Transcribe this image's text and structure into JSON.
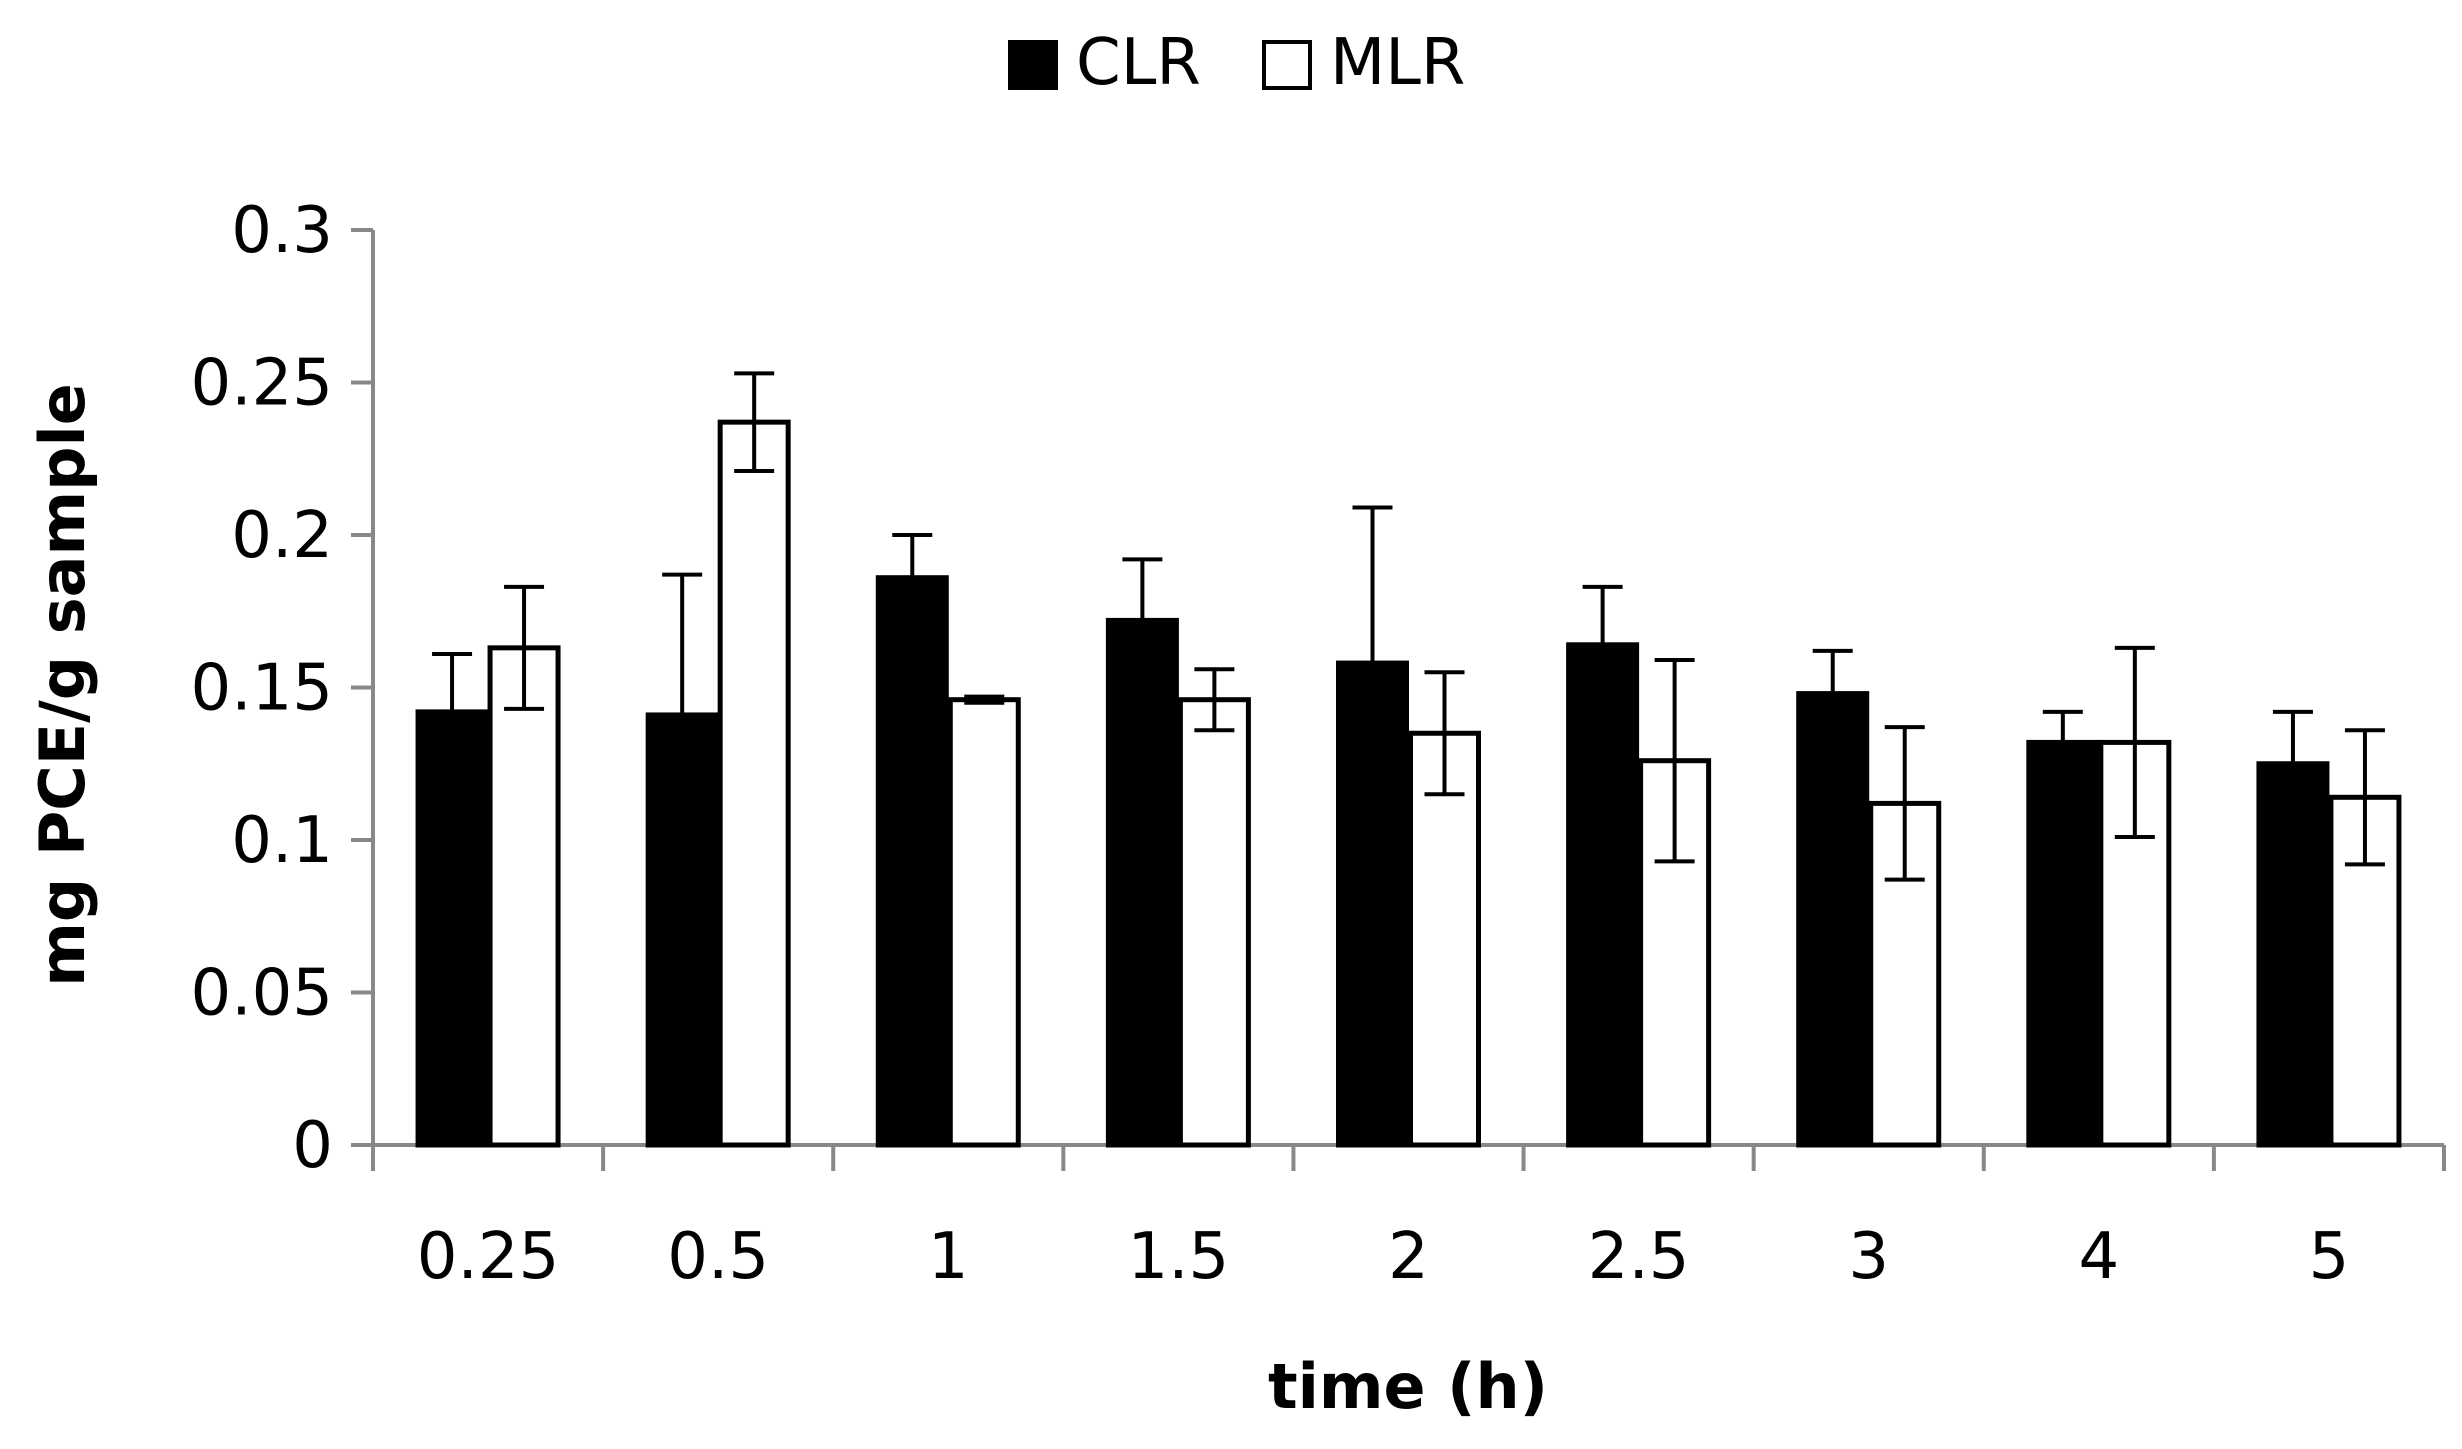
{
  "chart_data": {
    "type": "bar",
    "title": "",
    "xlabel": "time (h)",
    "ylabel": "mg PCE/g sample",
    "ylim": [
      0,
      0.3
    ],
    "yticks": [
      "0",
      "0.05",
      "0.1",
      "0.15",
      "0.2",
      "0.25",
      "0.3"
    ],
    "yticks_values": [
      0,
      0.05,
      0.1,
      0.15,
      0.2,
      0.25,
      0.3
    ],
    "categories": [
      "0.25",
      "0.5",
      "1",
      "1.5",
      "2",
      "2.5",
      "3",
      "4",
      "5"
    ],
    "legend_position": "top-center",
    "series": [
      {
        "name": "CLR",
        "fill": "#000000",
        "values": [
          0.142,
          0.141,
          0.186,
          0.172,
          0.158,
          0.164,
          0.148,
          0.132,
          0.125
        ],
        "errors": [
          0.019,
          0.046,
          0.014,
          0.02,
          0.051,
          0.019,
          0.014,
          0.01,
          0.017
        ]
      },
      {
        "name": "MLR",
        "fill": "#ffffff",
        "values": [
          0.163,
          0.237,
          0.146,
          0.146,
          0.135,
          0.126,
          0.112,
          0.132,
          0.114
        ],
        "errors": [
          0.02,
          0.016,
          0.001,
          0.01,
          0.02,
          0.033,
          0.025,
          0.031,
          0.022
        ]
      }
    ]
  }
}
